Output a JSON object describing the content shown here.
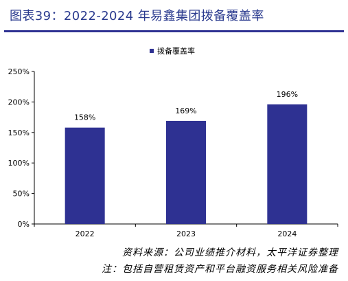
{
  "header": {
    "title": "图表39：2022-2024 年易鑫集团拨备覆盖率"
  },
  "footer": {
    "source": "资料来源：公司业绩推介材料，太平洋证券整理",
    "note": "注：包括自营租赁资产和平台融资服务相关风险准备"
  },
  "colors": {
    "title": "#2b3b8f",
    "rule": "#2e3192",
    "bar": "#2e3192"
  },
  "chart_data": {
    "type": "bar",
    "categories": [
      "2022",
      "2023",
      "2024"
    ],
    "series": [
      {
        "name": "拨备覆盖率",
        "values": [
          158,
          169,
          196
        ]
      }
    ],
    "data_labels": [
      "158%",
      "169%",
      "196%"
    ],
    "ylim": [
      0,
      250
    ],
    "yticks": [
      0,
      50,
      100,
      150,
      200,
      250
    ],
    "ytick_labels": [
      "0%",
      "50%",
      "100%",
      "150%",
      "200%",
      "250%"
    ],
    "grid": false,
    "legend": "top-center"
  }
}
